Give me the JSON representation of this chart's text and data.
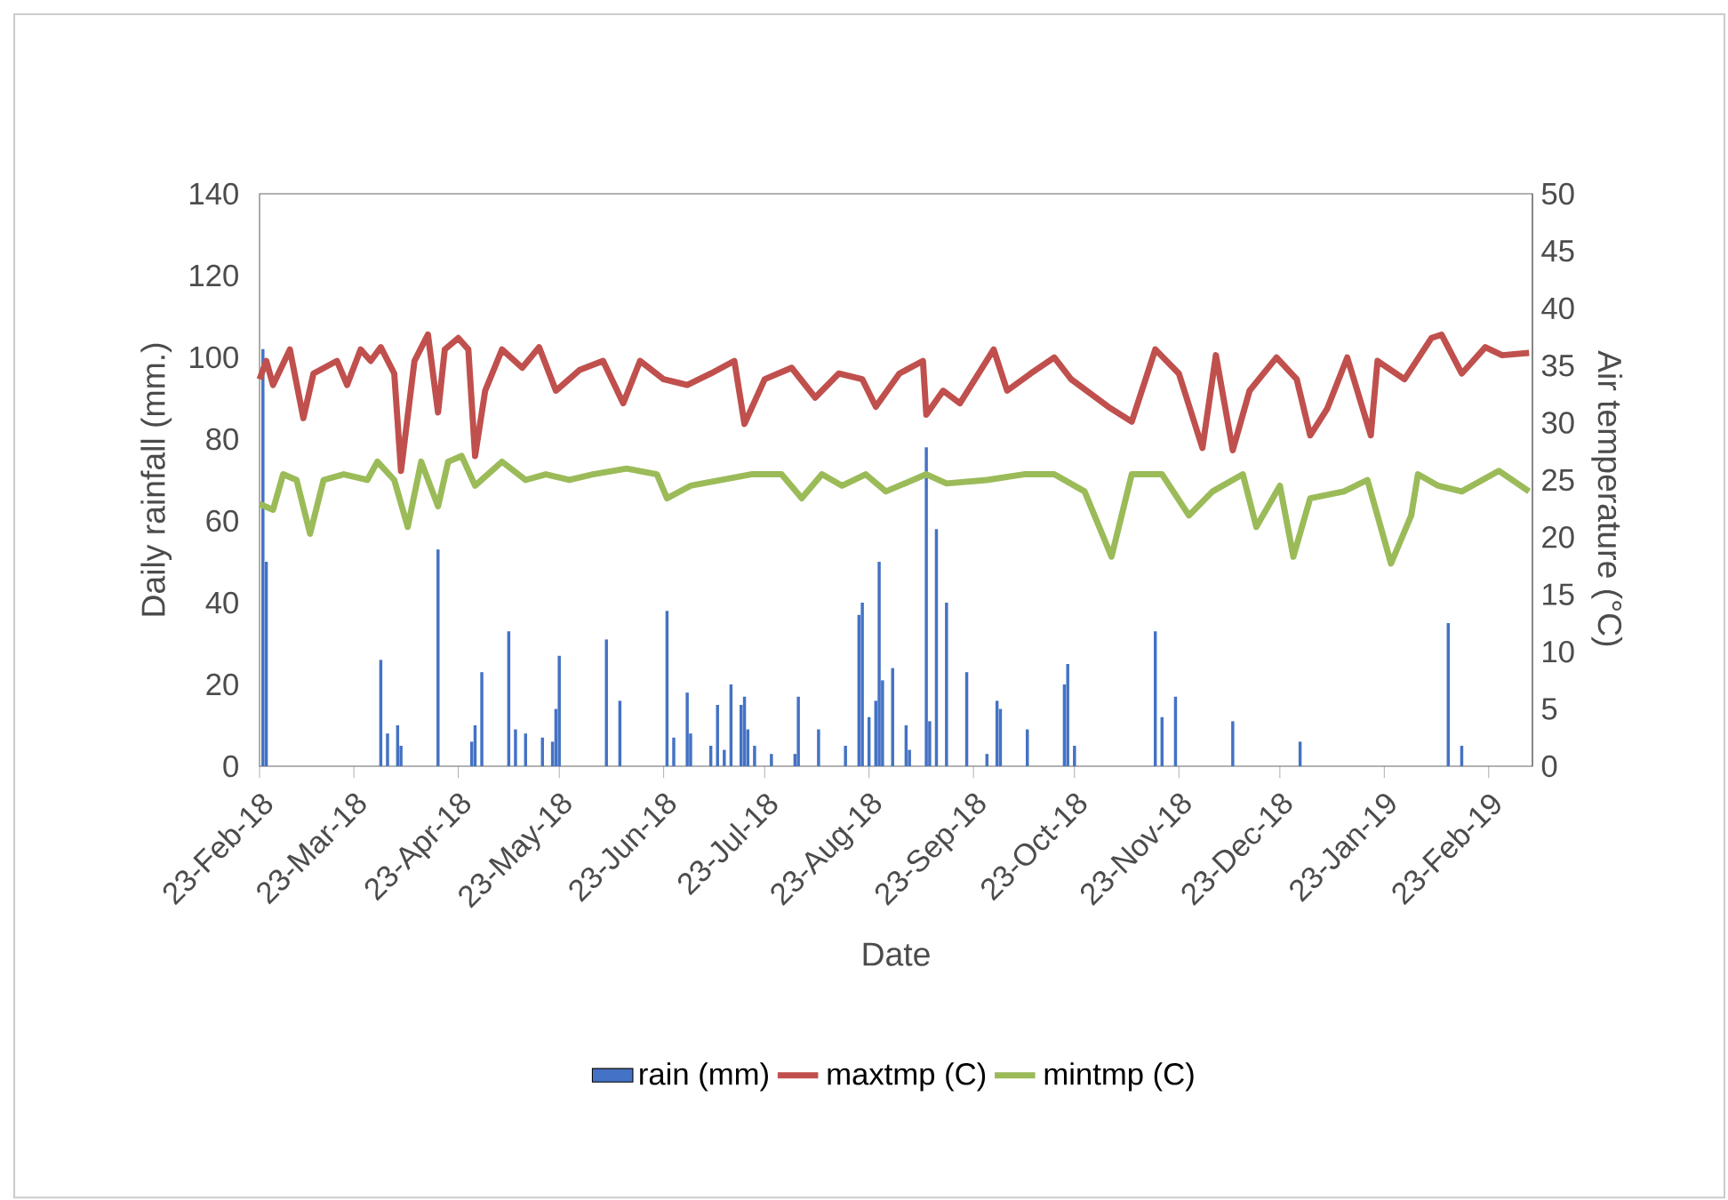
{
  "chart_data": {
    "type": "bar",
    "xlabel": "Date",
    "ylabel": "Daily rainfall (mm.)",
    "y2label": "Air temperature (°C)",
    "xlim": [
      "2018-02-23",
      "2019-03-08"
    ],
    "xticks": [
      {
        "value": "2018-02-23",
        "label": "23-Feb-18"
      },
      {
        "value": "2018-03-23",
        "label": "23-Mar-18"
      },
      {
        "value": "2018-04-23",
        "label": "23-Apr-18"
      },
      {
        "value": "2018-05-23",
        "label": "23-May-18"
      },
      {
        "value": "2018-06-23",
        "label": "23-Jun-18"
      },
      {
        "value": "2018-07-23",
        "label": "23-Jul-18"
      },
      {
        "value": "2018-08-23",
        "label": "23-Aug-18"
      },
      {
        "value": "2018-09-23",
        "label": "23-Sep-18"
      },
      {
        "value": "2018-10-23",
        "label": "23-Oct-18"
      },
      {
        "value": "2018-11-23",
        "label": "23-Nov-18"
      },
      {
        "value": "2018-12-23",
        "label": "23-Dec-18"
      },
      {
        "value": "2019-01-23",
        "label": "23-Jan-19"
      },
      {
        "value": "2019-02-23",
        "label": "23-Feb-19"
      }
    ],
    "ylim": [
      0,
      140
    ],
    "yticks": [
      0,
      20,
      40,
      60,
      80,
      100,
      120,
      140
    ],
    "y2lim": [
      0,
      50
    ],
    "y2ticks": [
      0,
      5,
      10,
      15,
      20,
      25,
      30,
      35,
      40,
      45,
      50
    ],
    "legend": "bottom",
    "series": [
      {
        "name": "rain (mm)",
        "color": "#4472c4",
        "x": [
          "2018-02-24",
          "2018-02-25",
          "2018-03-31",
          "2018-04-02",
          "2018-04-05",
          "2018-04-06",
          "2018-04-17",
          "2018-04-27",
          "2018-04-28",
          "2018-04-30",
          "2018-05-08",
          "2018-05-10",
          "2018-05-13",
          "2018-05-18",
          "2018-05-21",
          "2018-05-22",
          "2018-05-23",
          "2018-06-06",
          "2018-06-10",
          "2018-06-24",
          "2018-06-26",
          "2018-06-30",
          "2018-07-01",
          "2018-07-07",
          "2018-07-09",
          "2018-07-11",
          "2018-07-13",
          "2018-07-16",
          "2018-07-17",
          "2018-07-18",
          "2018-07-20",
          "2018-07-25",
          "2018-08-01",
          "2018-08-02",
          "2018-08-08",
          "2018-08-16",
          "2018-08-20",
          "2018-08-21",
          "2018-08-23",
          "2018-08-25",
          "2018-08-26",
          "2018-08-27",
          "2018-08-30",
          "2018-09-03",
          "2018-09-04",
          "2018-09-09",
          "2018-09-10",
          "2018-09-12",
          "2018-09-15",
          "2018-09-21",
          "2018-09-27",
          "2018-09-30",
          "2018-10-01",
          "2018-10-09",
          "2018-10-20",
          "2018-10-21",
          "2018-10-23",
          "2018-11-16",
          "2018-11-18",
          "2018-11-22",
          "2018-12-09",
          "2018-12-29",
          "2019-02-11",
          "2019-02-15"
        ],
        "values": [
          102,
          50,
          26,
          8,
          10,
          5,
          53,
          6,
          10,
          23,
          33,
          9,
          8,
          7,
          6,
          14,
          27,
          31,
          16,
          38,
          7,
          18,
          8,
          5,
          15,
          4,
          20,
          15,
          17,
          9,
          5,
          3,
          3,
          17,
          9,
          5,
          37,
          40,
          12,
          16,
          50,
          21,
          24,
          10,
          4,
          78,
          11,
          58,
          40,
          23,
          3,
          16,
          14,
          9,
          20,
          25,
          5,
          33,
          12,
          17,
          11,
          6,
          35,
          5
        ]
      },
      {
        "name": "maxtmp (C)",
        "type": "line",
        "axis": "y2",
        "color": "#c0504d",
        "x": [
          "2018-02-23",
          "2018-02-25",
          "2018-02-27",
          "2018-03-04",
          "2018-03-08",
          "2018-03-11",
          "2018-03-18",
          "2018-03-21",
          "2018-03-25",
          "2018-03-28",
          "2018-03-31",
          "2018-04-04",
          "2018-04-06",
          "2018-04-10",
          "2018-04-14",
          "2018-04-17",
          "2018-04-19",
          "2018-04-23",
          "2018-04-26",
          "2018-04-28",
          "2018-05-01",
          "2018-05-06",
          "2018-05-12",
          "2018-05-17",
          "2018-05-22",
          "2018-05-29",
          "2018-06-05",
          "2018-06-11",
          "2018-06-16",
          "2018-06-23",
          "2018-06-30",
          "2018-07-07",
          "2018-07-14",
          "2018-07-17",
          "2018-07-23",
          "2018-07-31",
          "2018-08-07",
          "2018-08-14",
          "2018-08-21",
          "2018-08-25",
          "2018-09-01",
          "2018-09-08",
          "2018-09-09",
          "2018-09-14",
          "2018-09-19",
          "2018-09-29",
          "2018-10-03",
          "2018-10-10",
          "2018-10-17",
          "2018-10-22",
          "2018-11-02",
          "2018-11-09",
          "2018-11-16",
          "2018-11-23",
          "2018-11-30",
          "2018-12-04",
          "2018-12-09",
          "2018-12-14",
          "2018-12-22",
          "2018-12-28",
          "2019-01-01",
          "2019-01-06",
          "2019-01-12",
          "2019-01-19",
          "2019-01-21",
          "2019-01-29",
          "2019-02-06",
          "2019-02-09",
          "2019-02-15",
          "2019-02-22",
          "2019-02-27",
          "2019-03-07"
        ],
        "values": [
          33.8,
          35.4,
          33.3,
          36.4,
          30.4,
          34.3,
          35.4,
          33.3,
          36.4,
          35.4,
          36.6,
          34.3,
          25.8,
          35.4,
          37.7,
          30.9,
          36.4,
          37.4,
          36.4,
          27.1,
          32.8,
          36.4,
          34.8,
          36.6,
          32.8,
          34.6,
          35.4,
          31.7,
          35.4,
          33.8,
          33.3,
          34.3,
          35.4,
          29.9,
          33.8,
          34.8,
          32.2,
          34.3,
          33.8,
          31.4,
          34.3,
          35.4,
          30.7,
          32.8,
          31.7,
          36.4,
          32.8,
          34.3,
          35.7,
          33.8,
          31.4,
          30.1,
          36.4,
          34.3,
          27.8,
          35.9,
          27.6,
          32.8,
          35.7,
          33.8,
          28.9,
          31.2,
          35.7,
          28.9,
          35.4,
          33.8,
          37.4,
          37.7,
          34.3,
          36.6,
          35.9,
          36.1
        ]
      },
      {
        "name": "mintmp (C)",
        "type": "line",
        "axis": "y2",
        "color": "#9bbb59",
        "x": [
          "2018-02-23",
          "2018-02-27",
          "2018-03-02",
          "2018-03-06",
          "2018-03-10",
          "2018-03-14",
          "2018-03-20",
          "2018-03-27",
          "2018-03-30",
          "2018-04-04",
          "2018-04-08",
          "2018-04-12",
          "2018-04-17",
          "2018-04-20",
          "2018-04-24",
          "2018-04-28",
          "2018-05-06",
          "2018-05-13",
          "2018-05-19",
          "2018-05-26",
          "2018-06-02",
          "2018-06-12",
          "2018-06-21",
          "2018-06-24",
          "2018-07-01",
          "2018-07-10",
          "2018-07-19",
          "2018-07-28",
          "2018-08-03",
          "2018-08-09",
          "2018-08-15",
          "2018-08-22",
          "2018-08-28",
          "2018-09-01",
          "2018-09-09",
          "2018-09-15",
          "2018-09-27",
          "2018-10-08",
          "2018-10-17",
          "2018-10-26",
          "2018-11-03",
          "2018-11-09",
          "2018-11-18",
          "2018-11-26",
          "2018-12-03",
          "2018-12-12",
          "2018-12-16",
          "2018-12-23",
          "2018-12-27",
          "2019-01-01",
          "2019-01-11",
          "2019-01-18",
          "2019-01-25",
          "2019-01-31",
          "2019-02-02",
          "2019-02-08",
          "2019-02-15",
          "2019-02-26",
          "2019-03-07"
        ],
        "values": [
          22.9,
          22.4,
          25.5,
          25.0,
          20.3,
          25.0,
          25.5,
          25.0,
          26.6,
          25.0,
          20.9,
          26.6,
          22.7,
          26.6,
          27.1,
          24.5,
          26.6,
          25.0,
          25.5,
          25.0,
          25.5,
          26.0,
          25.5,
          23.4,
          24.5,
          25.0,
          25.5,
          25.5,
          23.4,
          25.5,
          24.5,
          25.5,
          24.0,
          24.5,
          25.5,
          24.7,
          25.0,
          25.5,
          25.5,
          24.0,
          18.3,
          25.5,
          25.5,
          21.9,
          24.0,
          25.5,
          20.9,
          24.5,
          18.3,
          23.4,
          24.0,
          25.0,
          17.7,
          21.9,
          25.5,
          24.5,
          24.0,
          25.8,
          24.0
        ]
      }
    ]
  }
}
